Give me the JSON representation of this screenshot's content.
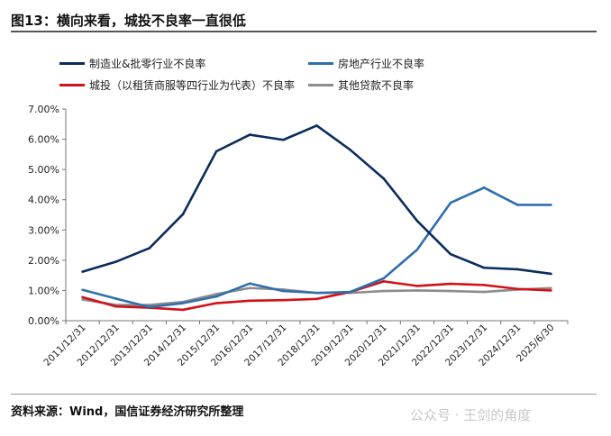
{
  "title": "图13：横向来看，城投不良率一直很低",
  "source": "资料来源：Wind，国信证券经济研究所整理",
  "watermark": "公众号 · 王剑的角度",
  "chart_data": {
    "type": "line",
    "ylim": [
      0,
      7
    ],
    "yticks": [
      "0.00%",
      "1.00%",
      "2.00%",
      "3.00%",
      "4.00%",
      "5.00%",
      "6.00%",
      "7.00%"
    ],
    "categories": [
      "2011/12/31",
      "2012/12/31",
      "2013/12/31",
      "2014/12/31",
      "2015/12/31",
      "2016/12/31",
      "2017/12/31",
      "2018/12/31",
      "2019/12/31",
      "2020/12/31",
      "2021/12/31",
      "2022/12/31",
      "2023/12/31",
      "2024/12/31",
      "2025/6/30"
    ],
    "legend": "top",
    "series": [
      {
        "name": "制造业&批零行业不良率",
        "color": "#0b2d5b",
        "values": [
          1.62,
          1.95,
          2.4,
          3.52,
          5.6,
          6.15,
          5.98,
          6.45,
          5.65,
          4.7,
          3.3,
          2.2,
          1.75,
          1.7,
          1.55
        ]
      },
      {
        "name": "房地产行业不良率",
        "color": "#2e6fad",
        "values": [
          1.02,
          0.73,
          0.45,
          0.58,
          0.8,
          1.23,
          0.98,
          0.92,
          0.95,
          1.4,
          2.35,
          3.9,
          4.4,
          3.83,
          3.83
        ]
      },
      {
        "name": "城投（以租赁商服等四行业为代表）不良率",
        "color": "#d0121b",
        "values": [
          0.78,
          0.47,
          0.43,
          0.36,
          0.58,
          0.66,
          0.68,
          0.72,
          0.95,
          1.3,
          1.15,
          1.22,
          1.18,
          1.05,
          1.0
        ]
      },
      {
        "name": "其他贷款不良率",
        "color": "#8c8c8c",
        "values": [
          0.7,
          0.52,
          0.52,
          0.62,
          0.88,
          1.08,
          1.03,
          0.92,
          0.92,
          0.98,
          1.0,
          0.98,
          0.95,
          1.03,
          1.08
        ]
      }
    ]
  }
}
